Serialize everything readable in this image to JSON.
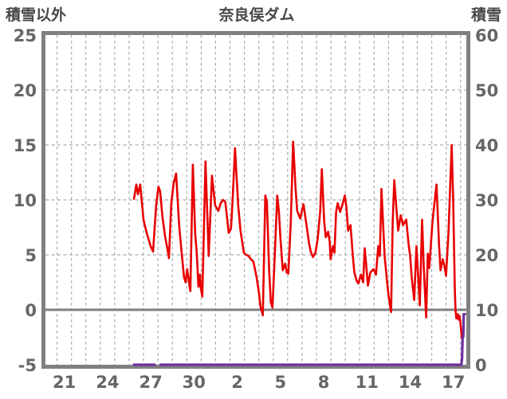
{
  "chart_data": {
    "type": "line",
    "title": "奈良俣ダム",
    "left_axis": {
      "label": "積雪以外",
      "min": -5,
      "max": 25,
      "ticks": [
        25,
        20,
        15,
        10,
        5,
        0,
        -5
      ]
    },
    "right_axis": {
      "label": "積雪",
      "min": 0,
      "max": 60,
      "ticks": [
        60,
        50,
        40,
        30,
        20,
        10,
        0
      ]
    },
    "x_axis": {
      "min": 0,
      "max": 29.4,
      "tick_labels": [
        "21",
        "24",
        "27",
        "30",
        "2",
        "5",
        "8",
        "11",
        "14",
        "17"
      ],
      "tick_positions": [
        1.5,
        4.5,
        7.5,
        10.5,
        13.5,
        16.5,
        19.5,
        22.5,
        25.5,
        28.5
      ],
      "gridline_step": 1
    },
    "grid": true,
    "legend": "none",
    "colors": {
      "red_line": "#e80000",
      "purple_line": "#7030a0",
      "frame": "#808080",
      "zero_line": "#808080",
      "gridline": "#aaaaaa",
      "tick_text": "#666666",
      "title_text": "#474747"
    },
    "series": [
      {
        "id": "series-red",
        "axis": "left",
        "points": [
          [
            6.34,
            10.1
          ],
          [
            6.5,
            11.4
          ],
          [
            6.61,
            10.5
          ],
          [
            6.77,
            11.4
          ],
          [
            7.0,
            8.2
          ],
          [
            7.22,
            7.0
          ],
          [
            7.49,
            5.8
          ],
          [
            7.66,
            5.3
          ],
          [
            7.88,
            9.6
          ],
          [
            8.04,
            11.2
          ],
          [
            8.15,
            10.8
          ],
          [
            8.32,
            8.4
          ],
          [
            8.49,
            6.7
          ],
          [
            8.65,
            5.6
          ],
          [
            8.76,
            4.7
          ],
          [
            8.93,
            9.7
          ],
          [
            9.09,
            11.5
          ],
          [
            9.26,
            12.4
          ],
          [
            9.48,
            7.5
          ],
          [
            9.65,
            5.1
          ],
          [
            9.81,
            3.0
          ],
          [
            9.92,
            2.5
          ],
          [
            10.03,
            3.7
          ],
          [
            10.2,
            2.1
          ],
          [
            10.25,
            1.7
          ],
          [
            10.42,
            13.2
          ],
          [
            10.58,
            7.0
          ],
          [
            10.7,
            5.1
          ],
          [
            10.81,
            2.1
          ],
          [
            10.92,
            3.2
          ],
          [
            10.97,
            2.0
          ],
          [
            11.08,
            1.2
          ],
          [
            11.3,
            13.5
          ],
          [
            11.52,
            4.9
          ],
          [
            11.75,
            12.2
          ],
          [
            11.97,
            9.5
          ],
          [
            12.19,
            9.0
          ],
          [
            12.35,
            9.7
          ],
          [
            12.52,
            10.0
          ],
          [
            12.68,
            9.8
          ],
          [
            12.91,
            7.0
          ],
          [
            13.07,
            7.4
          ],
          [
            13.18,
            10.0
          ],
          [
            13.35,
            14.7
          ],
          [
            13.57,
            9.5
          ],
          [
            13.73,
            7.2
          ],
          [
            13.96,
            5.2
          ],
          [
            14.12,
            5.0
          ],
          [
            14.29,
            4.9
          ],
          [
            14.45,
            4.6
          ],
          [
            14.62,
            4.4
          ],
          [
            14.84,
            3.0
          ],
          [
            15.01,
            1.5
          ],
          [
            15.12,
            0.3
          ],
          [
            15.28,
            -0.5
          ],
          [
            15.45,
            10.4
          ],
          [
            15.56,
            9.8
          ],
          [
            15.72,
            3.5
          ],
          [
            15.83,
            0.7
          ],
          [
            15.95,
            0.2
          ],
          [
            16.11,
            5.0
          ],
          [
            16.28,
            10.4
          ],
          [
            16.39,
            9.0
          ],
          [
            16.5,
            6.5
          ],
          [
            16.66,
            3.6
          ],
          [
            16.83,
            4.2
          ],
          [
            16.94,
            3.4
          ],
          [
            17.05,
            3.3
          ],
          [
            17.22,
            8.0
          ],
          [
            17.38,
            15.3
          ],
          [
            17.55,
            11.0
          ],
          [
            17.66,
            9.0
          ],
          [
            17.88,
            8.3
          ],
          [
            17.99,
            9.0
          ],
          [
            18.1,
            9.6
          ],
          [
            18.32,
            7.6
          ],
          [
            18.49,
            6.0
          ],
          [
            18.6,
            5.3
          ],
          [
            18.76,
            4.8
          ],
          [
            18.93,
            5.2
          ],
          [
            19.09,
            6.5
          ],
          [
            19.26,
            9.0
          ],
          [
            19.37,
            12.8
          ],
          [
            19.54,
            8.0
          ],
          [
            19.65,
            6.6
          ],
          [
            19.81,
            7.1
          ],
          [
            19.92,
            6.2
          ],
          [
            19.98,
            4.6
          ],
          [
            20.14,
            5.8
          ],
          [
            20.25,
            5.2
          ],
          [
            20.36,
            8.9
          ],
          [
            20.47,
            9.7
          ],
          [
            20.64,
            8.9
          ],
          [
            20.81,
            9.6
          ],
          [
            20.97,
            10.4
          ],
          [
            21.08,
            9.3
          ],
          [
            21.19,
            7.2
          ],
          [
            21.36,
            7.7
          ],
          [
            21.52,
            5.0
          ],
          [
            21.63,
            3.4
          ],
          [
            21.8,
            2.6
          ],
          [
            21.91,
            2.4
          ],
          [
            22.08,
            3.2
          ],
          [
            22.24,
            2.5
          ],
          [
            22.35,
            5.6
          ],
          [
            22.46,
            4.0
          ],
          [
            22.57,
            2.2
          ],
          [
            22.74,
            3.4
          ],
          [
            22.96,
            3.7
          ],
          [
            23.13,
            3.2
          ],
          [
            23.29,
            5.8
          ],
          [
            23.4,
            4.9
          ],
          [
            23.51,
            11.0
          ],
          [
            23.73,
            4.9
          ],
          [
            23.9,
            2.5
          ],
          [
            24.01,
            1.2
          ],
          [
            24.18,
            -0.2
          ],
          [
            24.29,
            8.0
          ],
          [
            24.4,
            11.8
          ],
          [
            24.56,
            9.0
          ],
          [
            24.67,
            7.2
          ],
          [
            24.84,
            8.6
          ],
          [
            25.01,
            7.7
          ],
          [
            25.23,
            8.2
          ],
          [
            25.39,
            6.0
          ],
          [
            25.5,
            4.9
          ],
          [
            25.61,
            2.9
          ],
          [
            25.78,
            0.9
          ],
          [
            25.94,
            5.8
          ],
          [
            26.06,
            3.0
          ],
          [
            26.17,
            0.4
          ],
          [
            26.33,
            8.2
          ],
          [
            26.44,
            4.0
          ],
          [
            26.61,
            -0.7
          ],
          [
            26.72,
            5.1
          ],
          [
            26.83,
            3.8
          ],
          [
            27.05,
            8.0
          ],
          [
            27.22,
            10.1
          ],
          [
            27.33,
            11.4
          ],
          [
            27.5,
            6.0
          ],
          [
            27.61,
            3.6
          ],
          [
            27.77,
            4.6
          ],
          [
            27.88,
            4.0
          ],
          [
            27.99,
            3.1
          ],
          [
            28.16,
            7.0
          ],
          [
            28.27,
            11.0
          ],
          [
            28.38,
            15.0
          ],
          [
            28.49,
            10.0
          ],
          [
            28.6,
            2.0
          ],
          [
            28.65,
            0
          ],
          [
            28.71,
            -0.8
          ],
          [
            28.82,
            -0.4
          ],
          [
            28.87,
            -0.9
          ],
          [
            28.93,
            -0.6
          ],
          [
            28.98,
            -1.0
          ],
          [
            29.09,
            -2.6
          ]
        ]
      },
      {
        "id": "series-purple",
        "axis": "right",
        "segments": [
          [
            [
              6.34,
              0
            ],
            [
              7.78,
              0
            ]
          ],
          [
            [
              8.17,
              0
            ],
            [
              8.77,
              0
            ]
          ],
          [
            [
              8.83,
              0
            ],
            [
              28.9,
              0
            ],
            [
              29.05,
              0
            ],
            [
              29.1,
              1.0
            ],
            [
              29.14,
              4.9
            ],
            [
              29.19,
              5.1
            ],
            [
              29.22,
              9.2
            ],
            [
              29.3,
              9.2
            ]
          ]
        ]
      }
    ]
  }
}
